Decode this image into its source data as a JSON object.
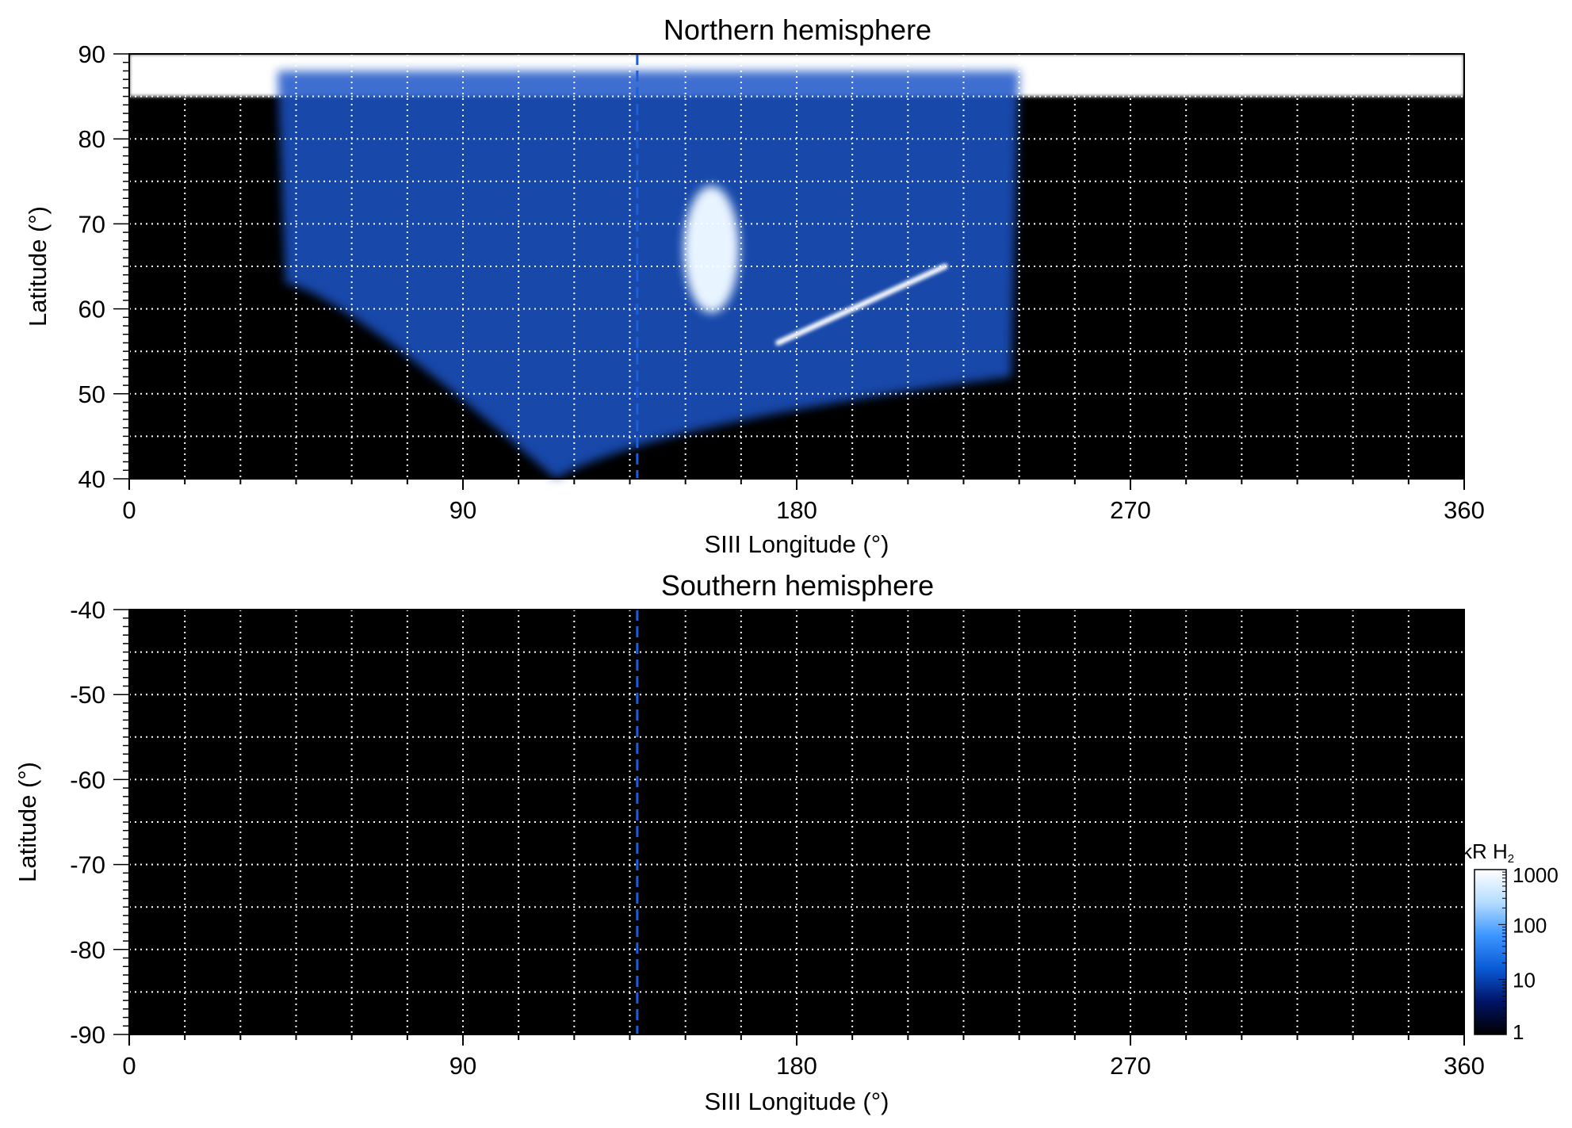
{
  "chart_data": [
    {
      "type": "heatmap",
      "title": "Northern hemisphere",
      "xlabel": "SIII Longitude (°)",
      "ylabel": "Latitude (°)",
      "xlim": [
        0,
        360
      ],
      "ylim": [
        40,
        90
      ],
      "xticks": [
        "0",
        "90",
        "180",
        "270",
        "360"
      ],
      "yticks": [
        "40",
        "50",
        "60",
        "70",
        "80",
        "90"
      ],
      "grid": true,
      "reference_longitude": 137,
      "features": [
        {
          "kind": "polar-cap",
          "lat_min": 85,
          "lon_range": [
            0,
            360
          ],
          "level_kR": 1000
        },
        {
          "kind": "emission-region",
          "lon_range": [
            40,
            240
          ],
          "lat_range": [
            52,
            88
          ],
          "level_kR": 100
        },
        {
          "kind": "bright-spot",
          "lon": 157,
          "lat": 67,
          "level_kR": 1000
        },
        {
          "kind": "auroral-arc",
          "lon_range": [
            175,
            220
          ],
          "lat_range": [
            56,
            65
          ],
          "level_kR": 1000
        },
        {
          "kind": "auroral-arc",
          "lon_range": [
            215,
            232
          ],
          "lat_range": [
            64,
            64
          ],
          "level_kR": 1000
        }
      ]
    },
    {
      "type": "heatmap",
      "title": "Southern hemisphere",
      "xlabel": "SIII Longitude (°)",
      "ylabel": "Latitude (°)",
      "xlim": [
        0,
        360
      ],
      "ylim": [
        -90,
        -40
      ],
      "xticks": [
        "0",
        "90",
        "180",
        "270",
        "360"
      ],
      "yticks": [
        "-40",
        "-50",
        "-60",
        "-70",
        "-80",
        "-90"
      ],
      "grid": true,
      "reference_longitude": 137,
      "features": []
    }
  ],
  "colorbar": {
    "label_prefix": "kR H",
    "label_sub": "2",
    "scale": "log",
    "range": [
      1,
      1000
    ],
    "ticks": [
      "1000",
      "100",
      "10",
      "1"
    ],
    "colors": [
      "#000000",
      "#001466",
      "#0a5ad7",
      "#3c96ff",
      "#b4dcff",
      "#ffffff"
    ]
  },
  "colors": {
    "background": "#000000",
    "grid": "#ffffff",
    "reference_line": "#1f5fd6"
  }
}
